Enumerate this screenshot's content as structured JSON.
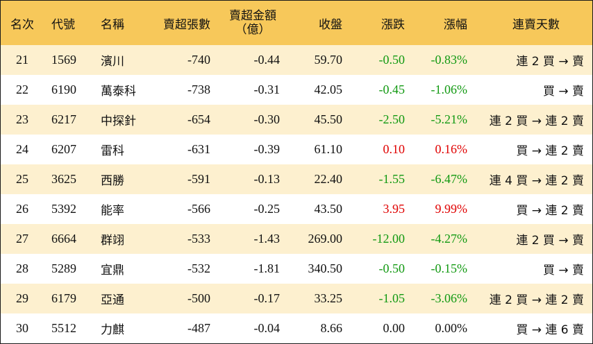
{
  "headers": {
    "rank": "名次",
    "code": "代號",
    "name": "名稱",
    "net_lots": "賣超張數",
    "net_amount_line1": "賣超金額",
    "net_amount_line2": "（億）",
    "close": "收盤",
    "change": "漲跌",
    "pct": "漲幅",
    "streak": "連賣天數"
  },
  "rows": [
    {
      "rank": "21",
      "code": "1569",
      "name": "濱川",
      "net_lots": "-740",
      "net_amount": "-0.44",
      "close": "59.70",
      "change": "-0.50",
      "pct": "-0.83%",
      "streak": "連 2 買 → 賣",
      "dir": "neg"
    },
    {
      "rank": "22",
      "code": "6190",
      "name": "萬泰科",
      "net_lots": "-738",
      "net_amount": "-0.31",
      "close": "42.05",
      "change": "-0.45",
      "pct": "-1.06%",
      "streak": "買 → 賣",
      "dir": "neg"
    },
    {
      "rank": "23",
      "code": "6217",
      "name": "中探針",
      "net_lots": "-654",
      "net_amount": "-0.30",
      "close": "45.50",
      "change": "-2.50",
      "pct": "-5.21%",
      "streak": "連 2 買 → 連 2 賣",
      "dir": "neg"
    },
    {
      "rank": "24",
      "code": "6207",
      "name": "雷科",
      "net_lots": "-631",
      "net_amount": "-0.39",
      "close": "61.10",
      "change": "0.10",
      "pct": "0.16%",
      "streak": "買 → 連 2 賣",
      "dir": "pos"
    },
    {
      "rank": "25",
      "code": "3625",
      "name": "西勝",
      "net_lots": "-591",
      "net_amount": "-0.13",
      "close": "22.40",
      "change": "-1.55",
      "pct": "-6.47%",
      "streak": "連 4 買 → 連 2 賣",
      "dir": "neg"
    },
    {
      "rank": "26",
      "code": "5392",
      "name": "能率",
      "net_lots": "-566",
      "net_amount": "-0.25",
      "close": "43.50",
      "change": "3.95",
      "pct": "9.99%",
      "streak": "買 → 連 2 賣",
      "dir": "pos"
    },
    {
      "rank": "27",
      "code": "6664",
      "name": "群翊",
      "net_lots": "-533",
      "net_amount": "-1.43",
      "close": "269.00",
      "change": "-12.00",
      "pct": "-4.27%",
      "streak": "連 2 買 → 賣",
      "dir": "neg"
    },
    {
      "rank": "28",
      "code": "5289",
      "name": "宜鼎",
      "net_lots": "-532",
      "net_amount": "-1.81",
      "close": "340.50",
      "change": "-0.50",
      "pct": "-0.15%",
      "streak": "買 → 賣",
      "dir": "neg"
    },
    {
      "rank": "29",
      "code": "6179",
      "name": "亞通",
      "net_lots": "-500",
      "net_amount": "-0.17",
      "close": "33.25",
      "change": "-1.05",
      "pct": "-3.06%",
      "streak": "連 2 買 → 連 2 賣",
      "dir": "neg"
    },
    {
      "rank": "30",
      "code": "5512",
      "name": "力麒",
      "net_lots": "-487",
      "net_amount": "-0.04",
      "close": "8.66",
      "change": "0.00",
      "pct": "0.00%",
      "streak": "買 → 連 6 賣",
      "dir": "zero"
    }
  ],
  "colors": {
    "header_bg": "#f7c85a",
    "stripe_bg": "#fdf0cf",
    "up": "#e00000",
    "down": "#119911"
  }
}
